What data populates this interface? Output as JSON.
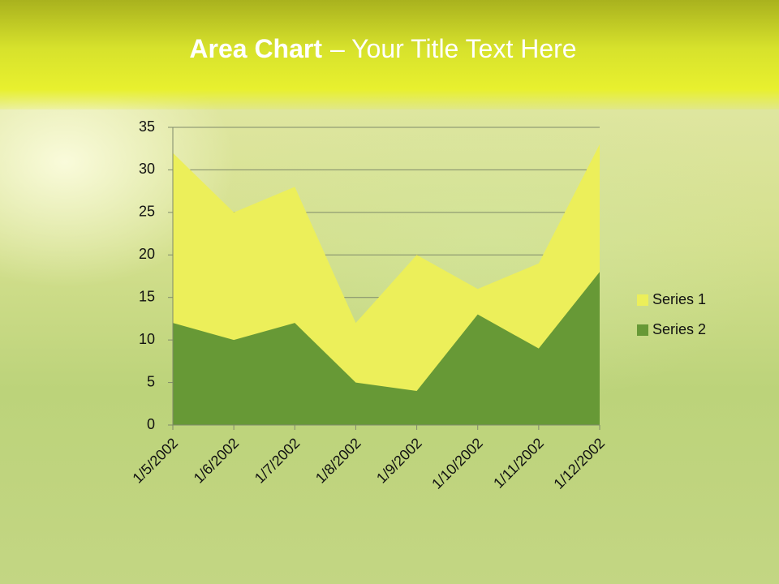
{
  "chart_data": {
    "type": "area",
    "title": {
      "bold": "Area Chart",
      "rest": "– Your Title Text Here"
    },
    "categories": [
      "1/5/2002",
      "1/6/2002",
      "1/7/2002",
      "1/8/2002",
      "1/9/2002",
      "1/10/2002",
      "1/11/2002",
      "1/12/2002"
    ],
    "series": [
      {
        "name": "Series 1",
        "color": "#ecef5a",
        "values": [
          32,
          25,
          28,
          12,
          20,
          16,
          19,
          33
        ]
      },
      {
        "name": "Series 2",
        "color": "#679936",
        "values": [
          12,
          10,
          12,
          5,
          4,
          13,
          9,
          18
        ]
      }
    ],
    "ylim": [
      0,
      35
    ],
    "yticks": [
      0,
      5,
      10,
      15,
      20,
      25,
      30,
      35
    ],
    "grid": true,
    "legend": "right"
  }
}
